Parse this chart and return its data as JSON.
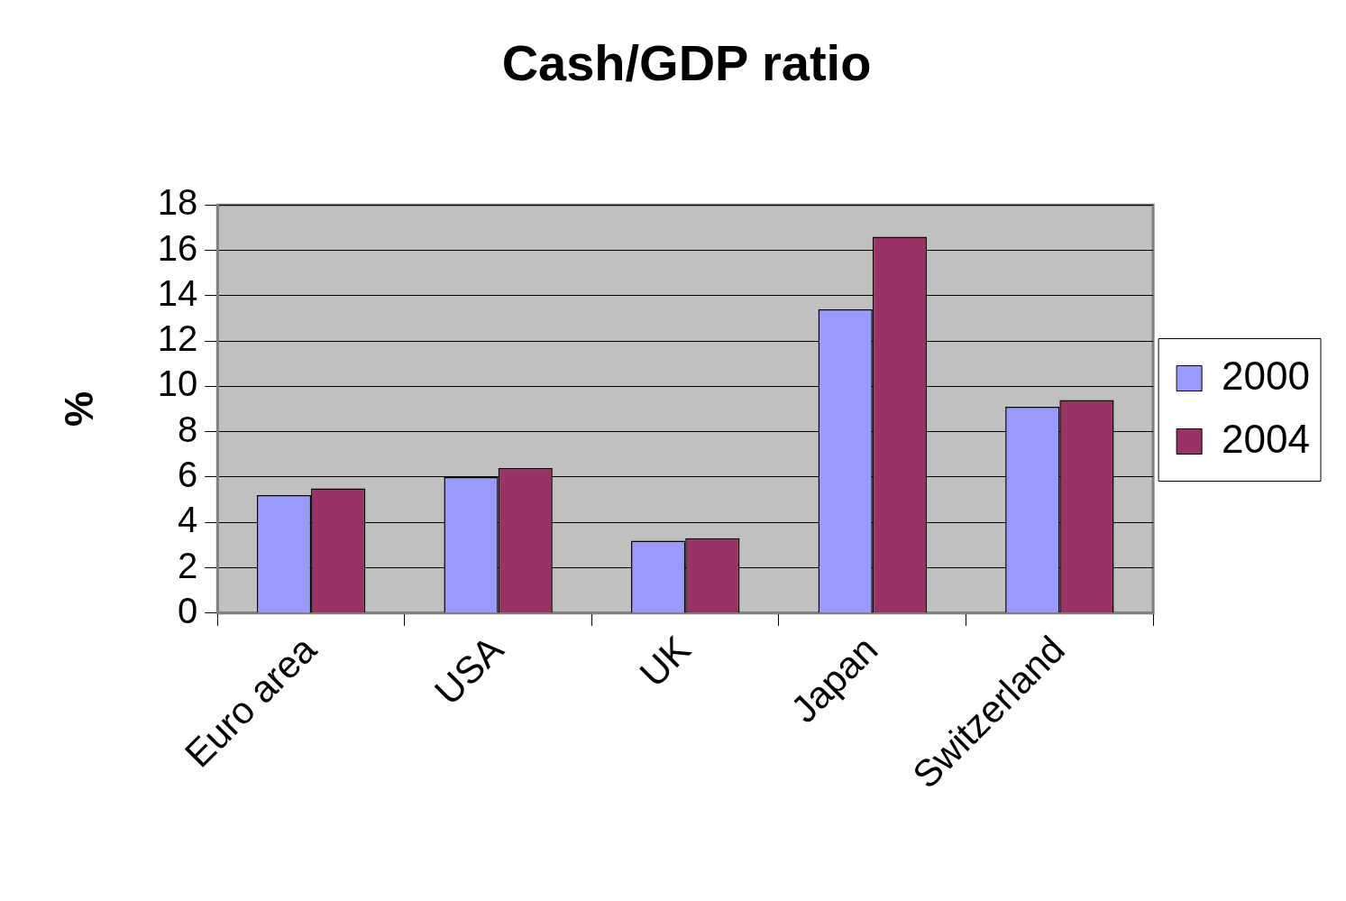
{
  "chart_data": {
    "type": "bar",
    "title": "Cash/GDP ratio",
    "ylabel": "%",
    "categories": [
      "Euro area",
      "USA",
      "UK",
      "Japan",
      "Switzerland"
    ],
    "series": [
      {
        "name": "2000",
        "color": "#9999ff",
        "values": [
          5.2,
          6.0,
          3.2,
          13.4,
          9.1
        ]
      },
      {
        "name": "2004",
        "color": "#993366",
        "values": [
          5.5,
          6.4,
          3.3,
          16.6,
          9.4
        ]
      }
    ],
    "ylim": [
      0,
      18
    ],
    "yticks": [
      0,
      2,
      4,
      6,
      8,
      10,
      12,
      14,
      16,
      18
    ],
    "grid": "y",
    "legend": "right"
  }
}
